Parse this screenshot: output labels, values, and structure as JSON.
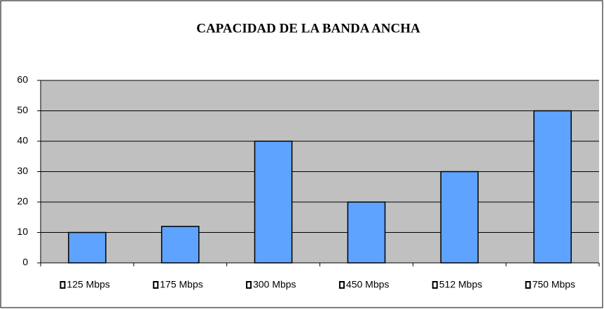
{
  "chart_data": {
    "type": "bar",
    "title": "CAPACIDAD DE LA BANDA ANCHA",
    "categories": [
      "125 Mbps",
      "175 Mbps",
      "300 Mbps",
      "450 Mbps",
      "512 Mbps",
      "750 Mbps"
    ],
    "values": [
      10,
      12,
      40,
      20,
      30,
      50
    ],
    "color": "#5ea3ff",
    "ylim": [
      0,
      60
    ],
    "yticks": [
      0,
      10,
      20,
      30,
      40,
      50,
      60
    ],
    "grid": true
  }
}
